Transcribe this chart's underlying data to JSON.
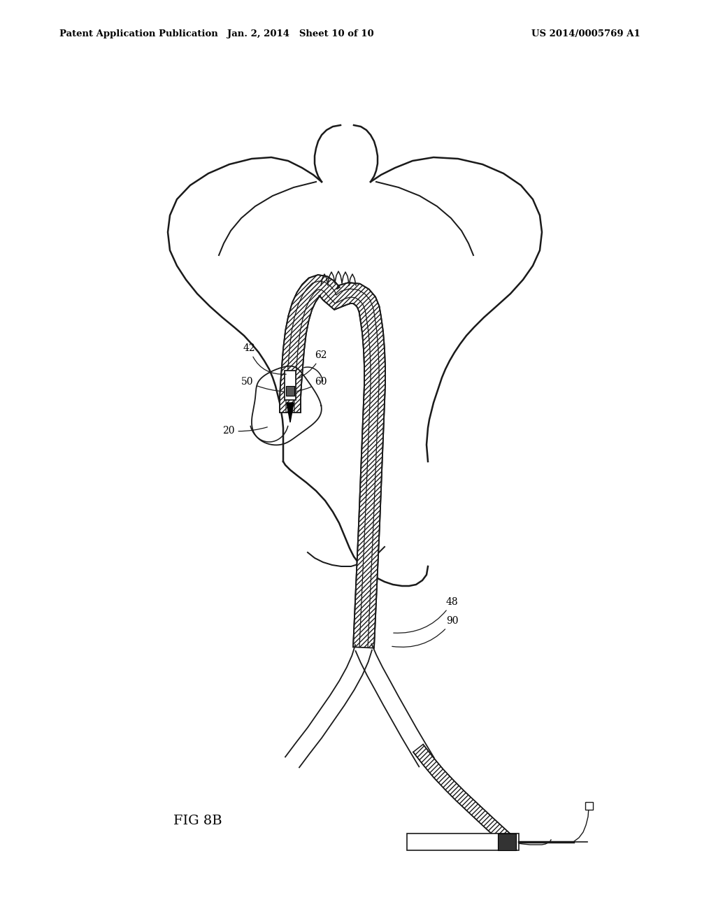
{
  "header_left": "Patent Application Publication",
  "header_center": "Jan. 2, 2014   Sheet 10 of 10",
  "header_right": "US 2014/0005769 A1",
  "figure_label": "FIG 8B",
  "background_color": "#ffffff",
  "line_color": "#1a1a1a"
}
